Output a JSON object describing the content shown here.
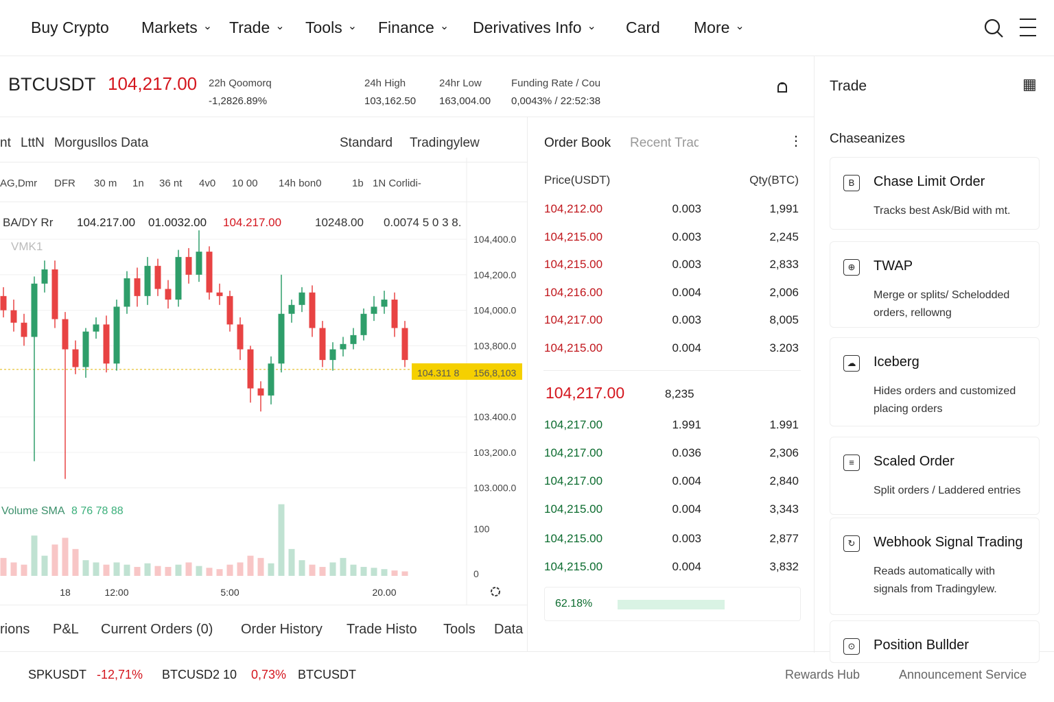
{
  "nav": {
    "items": [
      "Buy Crypto",
      "Markets",
      "Trade",
      "Tools",
      "Finance",
      "Derivatives Info",
      "Card",
      "More"
    ]
  },
  "ticker": {
    "symbol": "BTCUSDT",
    "price": "104,217.00",
    "stats": [
      {
        "label": "22h Qoomorq",
        "value": "-1,2826.89%"
      },
      {
        "label": "24h High",
        "value": "103,162.50"
      },
      {
        "label": "24hr Low",
        "value": "163,004.00"
      },
      {
        "label": "Funding Rate / Cou",
        "value": "0,0043% / 22:52:38"
      }
    ]
  },
  "chart_tabs": {
    "left": [
      "nt",
      "LttN",
      "Morgusllos Data"
    ],
    "right": [
      "Standard",
      "Tradingylew"
    ]
  },
  "intervals": [
    "AG,Dmr",
    "DFR",
    "30 m",
    "1n",
    "36 nt",
    "4v0",
    "10 00",
    "14h bon0",
    "1b",
    "1N Corlidi-"
  ],
  "ohlc_row": {
    "pair": "BA/DY Rr",
    "open": "104.217.00",
    "high": "01.0032.00",
    "low": "104.217.00",
    "vol": "10248.00",
    "change": "0.0074 5 0 3 8."
  },
  "indicator": "VMK1",
  "price_tags": {
    "last": "104.311 8",
    "countdown": "156,8,103"
  },
  "chart_data": {
    "type": "candlestick",
    "categories": [
      null,
      null,
      null,
      null,
      null,
      null,
      "18",
      null,
      null,
      null,
      null,
      "12:00",
      null,
      null,
      null,
      null,
      null,
      null,
      null,
      null,
      null,
      null,
      "5:00",
      null,
      null,
      null,
      null,
      null,
      null,
      null,
      null,
      null,
      null,
      null,
      null,
      null,
      null,
      "20.00",
      null,
      null
    ],
    "open": [
      104080,
      104000,
      103930,
      103850,
      104150,
      104230,
      103950,
      103780,
      103680,
      103880,
      103920,
      103700,
      104020,
      104180,
      104080,
      104250,
      104120,
      104060,
      104300,
      104200,
      104330,
      104100,
      104080,
      103920,
      103780,
      103560,
      103520,
      103700,
      103980,
      104030,
      104100,
      103900,
      103720,
      103780,
      103810,
      103860,
      103980,
      104020,
      104060,
      103900
    ],
    "high": [
      104130,
      104060,
      103980,
      104190,
      104280,
      104280,
      103990,
      103830,
      103900,
      103960,
      103970,
      104060,
      104220,
      104240,
      104300,
      104290,
      104170,
      104340,
      104350,
      104450,
      104360,
      104150,
      104110,
      103960,
      103800,
      103600,
      103740,
      104200,
      104060,
      104130,
      104140,
      103940,
      103820,
      103850,
      103900,
      104010,
      104080,
      104110,
      104100,
      103940
    ],
    "low": [
      103960,
      103880,
      103800,
      103150,
      104100,
      103900,
      103050,
      103640,
      103620,
      103840,
      103650,
      103660,
      103980,
      104020,
      104030,
      104080,
      104010,
      104020,
      104150,
      104160,
      104060,
      104030,
      103880,
      103720,
      103480,
      103430,
      103470,
      103650,
      103930,
      103990,
      103850,
      103680,
      103660,
      103740,
      103780,
      103830,
      103940,
      103980,
      103850,
      103680
    ],
    "close": [
      104000,
      103930,
      103850,
      104150,
      104230,
      103950,
      103780,
      103680,
      103880,
      103920,
      103700,
      104020,
      104180,
      104080,
      104250,
      104120,
      104060,
      104300,
      104200,
      104330,
      104100,
      104080,
      103920,
      103780,
      103560,
      103520,
      103700,
      103980,
      104030,
      104100,
      103900,
      103720,
      103780,
      103810,
      103860,
      103980,
      104020,
      104060,
      103900,
      103720
    ],
    "up_color": "#2e9e6a",
    "down_color": "#e84343",
    "ylim": [
      102960,
      104450
    ],
    "yticks": [
      {
        "value": 104400,
        "label": "104,400.0"
      },
      {
        "value": 104200,
        "label": "104,200.0"
      },
      {
        "value": 104000,
        "label": "104,000.0"
      },
      {
        "value": 103800,
        "label": "103,800.0"
      },
      {
        "value": 103400,
        "label": "103.400.0"
      },
      {
        "value": 103200,
        "label": "103,200.0"
      },
      {
        "value": 103000,
        "label": "103.000.0"
      }
    ],
    "grid": true,
    "last_price": 103667,
    "volume": {
      "label": "Volume SMA",
      "sma_label": "8 76 78 88",
      "values": [
        40,
        30,
        25,
        90,
        45,
        70,
        85,
        60,
        35,
        30,
        25,
        30,
        25,
        20,
        28,
        22,
        20,
        25,
        30,
        22,
        18,
        15,
        25,
        30,
        45,
        40,
        28,
        160,
        60,
        35,
        25,
        20,
        30,
        40,
        25,
        20,
        18,
        15,
        12,
        10
      ],
      "ylim": [
        0,
        170
      ],
      "yticks": [
        0,
        100
      ]
    }
  },
  "bottom_tabs": [
    "rions",
    "P&L",
    "Current Orders (0)",
    "Order History",
    "Trade Histo",
    "Tools",
    "Data"
  ],
  "order_book": {
    "tabs": [
      "Order Book",
      "Recent Trades"
    ],
    "headers": [
      "Price(USDT)",
      "Qty(BTC)"
    ],
    "asks": [
      [
        "104,212.00",
        "0.003",
        "1,991"
      ],
      [
        "104,215.00",
        "0.003",
        "2,245"
      ],
      [
        "104,215.00",
        "0.003",
        "2,833"
      ],
      [
        "104,216.00",
        "0.004",
        "2,006"
      ],
      [
        "104,217.00",
        "0.003",
        "8,005"
      ],
      [
        "104,215.00",
        "0.004",
        "3.203"
      ]
    ],
    "mid": {
      "price": "104,217.00",
      "qty": "8,235"
    },
    "bids": [
      [
        "104,217.00",
        "1.991",
        "1.991"
      ],
      [
        "104,217.00",
        "0.036",
        "2,306"
      ],
      [
        "104,217.00",
        "0.004",
        "2,840"
      ],
      [
        "104,215.00",
        "0.004",
        "3,343"
      ],
      [
        "104,215.00",
        "0.003",
        "2,877"
      ],
      [
        "104,215.00",
        "0.004",
        "3,832"
      ]
    ],
    "buy_ratio": 62.18,
    "buy_ratio_label": "62.18%"
  },
  "trade_panel": {
    "title": "Trade",
    "section": "Chaseanizes",
    "cards": [
      {
        "title": "Chase Limit Order",
        "desc": "Tracks best Ask/Bid with mt."
      },
      {
        "title": "TWAP",
        "desc": "Merge or splits/ Schelodded orders, rellowng"
      },
      {
        "title": "Iceberg",
        "desc": "Hides orders and customized placing orders"
      },
      {
        "title": "Scaled Order",
        "desc": "Split orders / Laddered entries"
      },
      {
        "title": "Webhook Signal Trading",
        "desc": "Reads automatically with signals from Tradingylew."
      },
      {
        "title": "Position Bullder",
        "desc": null
      }
    ]
  },
  "footer": {
    "tickers": [
      {
        "symbol": "SPKUSDT",
        "change": "-12,71%"
      },
      {
        "symbol": "BTCUSD2 10",
        "change": "0,73%"
      },
      {
        "symbol": "BTCUSDT",
        "change": null
      }
    ],
    "links": [
      "Rewards Hub",
      "Announcement Service"
    ]
  }
}
